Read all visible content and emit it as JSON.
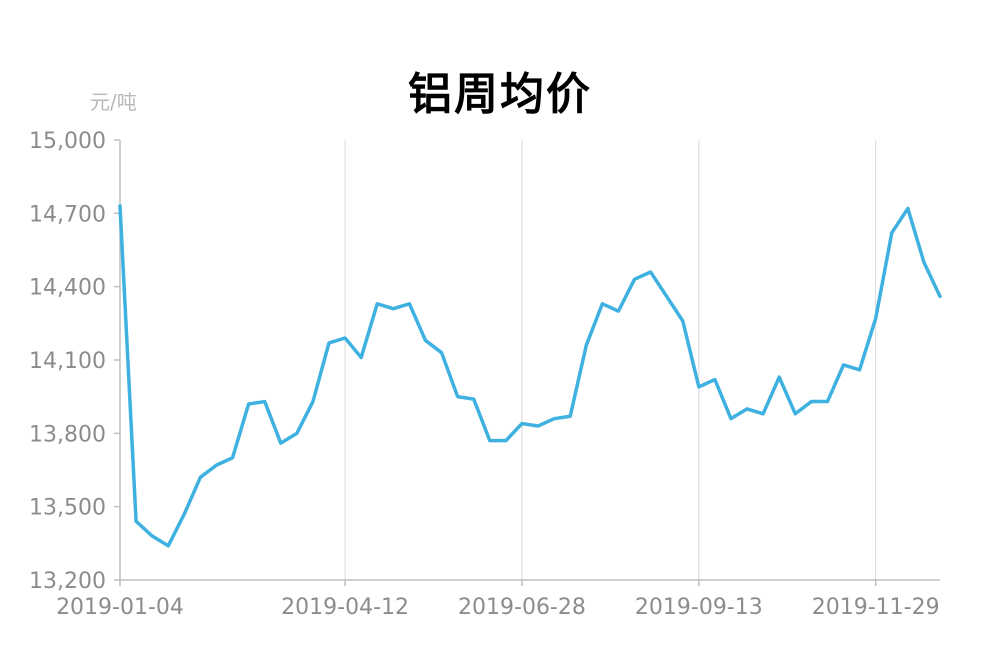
{
  "chart_data": {
    "type": "line",
    "title": "铝周均价",
    "y_unit_label": "元/吨",
    "xlabel": "",
    "ylabel": "",
    "ylim": [
      13200,
      15000
    ],
    "y_ticks": [
      13200,
      13500,
      13800,
      14100,
      14400,
      14700,
      15000
    ],
    "y_tick_labels": [
      "13,200",
      "13,500",
      "13,800",
      "14,100",
      "14,400",
      "14,700",
      "15,000"
    ],
    "x_tick_labels": [
      "2019-01-04",
      "2019-04-12",
      "2019-06-28",
      "2019-09-13",
      "2019-11-29"
    ],
    "x_tick_indices": [
      0,
      14,
      25,
      36,
      47
    ],
    "grid": {
      "vertical": true,
      "horizontal": false
    },
    "legend": "none",
    "colors": {
      "line": "#3fb1e0",
      "grid": "#d9d9d9",
      "axis": "#bfbfbf",
      "tick_text": "#8c8c8c"
    },
    "series": [
      {
        "values": [
          14730,
          13440,
          13380,
          13340,
          13470,
          13620,
          13670,
          13700,
          13920,
          13930,
          13760,
          13800,
          13930,
          14170,
          14190,
          14110,
          14330,
          14310,
          14330,
          14180,
          14130,
          13950,
          13940,
          13770,
          13770,
          13840,
          13830,
          13860,
          13870,
          14160,
          14330,
          14300,
          14430,
          14460,
          14360,
          14260,
          13990,
          14020,
          13860,
          13900,
          13880,
          14030,
          13880,
          13930,
          13930,
          14080,
          14060,
          14270,
          14620,
          14720,
          14500,
          14360
        ]
      }
    ]
  }
}
